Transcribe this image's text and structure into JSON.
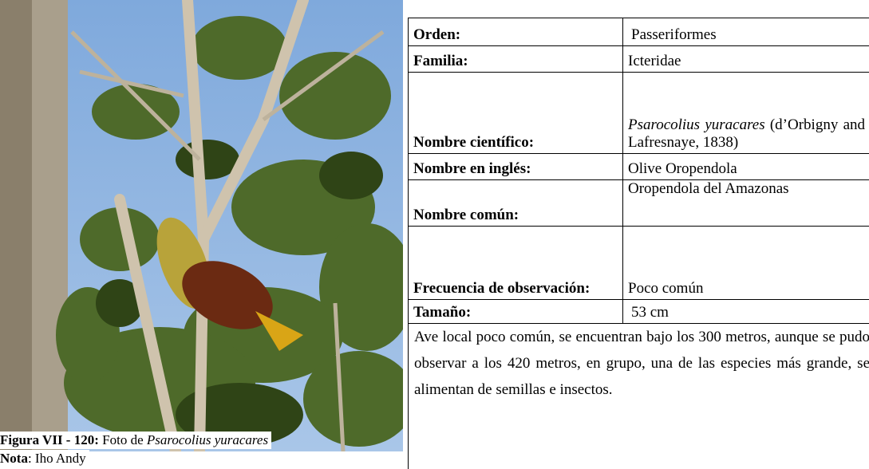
{
  "figure": {
    "caption": {
      "label": "Figura VII - 120:",
      "text": "Foto de",
      "species": "Psarocolius yuracares"
    },
    "note": {
      "label": "Nota",
      "text": ": Iho Andy"
    }
  },
  "table": {
    "rows": [
      {
        "label": "Orden:",
        "value": "Passeriformes"
      },
      {
        "label": "Familia:",
        "value": "Icteridae"
      },
      {
        "label": "Nombre científico:",
        "value_italic": "Psarocolius yuracares",
        "value": "(d’Orbigny and Lafresnaye, 1838)"
      },
      {
        "label": "Nombre en inglés:",
        "value": "Olive Oropendola"
      },
      {
        "label": "Nombre común:",
        "value": "Oropendola del Amazonas"
      },
      {
        "label": "Frecuencia de observación:",
        "value": "Poco común"
      },
      {
        "label": "Tamaño:",
        "value": "53 cm"
      }
    ]
  },
  "description": "Ave local poco común, se encuentran bajo los 300 metros, aunque se pudo observar a los 420 metros, en grupo, una de las especies más grande, se alimentan de semillas e insectos."
}
